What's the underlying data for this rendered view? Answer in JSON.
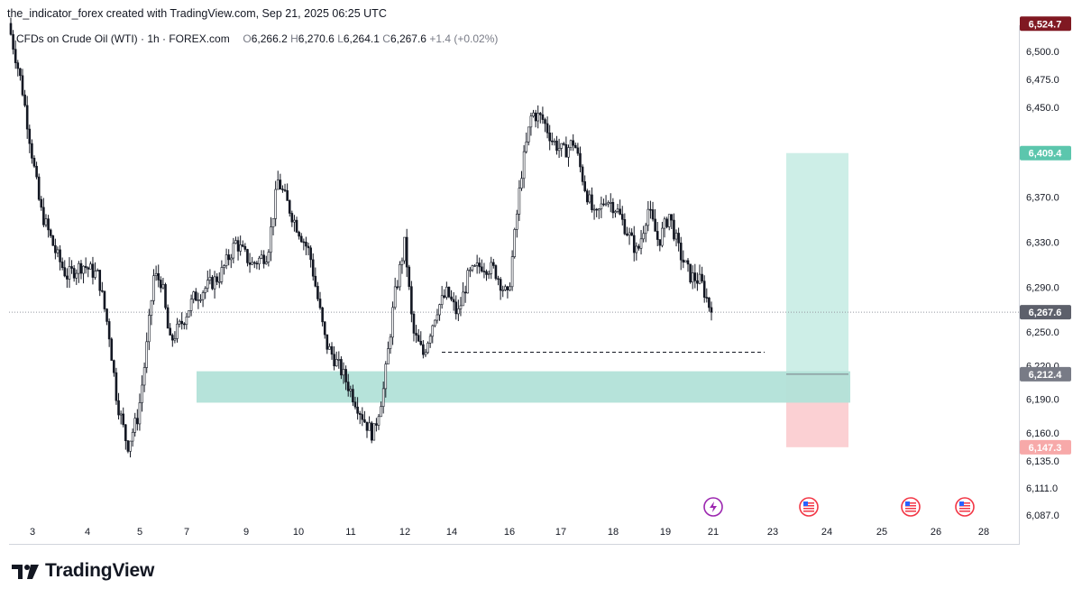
{
  "header": {
    "caption": "the_indicator_forex created with TradingView.com, Sep 21, 2025 06:25 UTC",
    "symbol": "CFDs on Crude Oil (WTI) · 1h · FOREX.com",
    "ohlc": {
      "o_label": "O",
      "o": "6,266.2",
      "h_label": "H",
      "h": "6,270.6",
      "l_label": "L",
      "l": "6,264.1",
      "c_label": "C",
      "c": "6,267.6",
      "change": "+1.4 (+0.02%)"
    }
  },
  "brand": {
    "name": "TradingView"
  },
  "colors": {
    "candle": "#131722",
    "zone": "#b2e2d8",
    "target": "#cdeee7",
    "stop": "#fbd0d3",
    "tag_high": "#801922",
    "tag_target": "#5cc6ad",
    "tag_last": "#5d606b",
    "tag_entry": "#787b86",
    "tag_stop": "#f7a9a9"
  },
  "chart_data": {
    "type": "candlestick",
    "y_axis_ticks": [
      "6,500.0",
      "6,475.0",
      "6,450.0",
      "6,370.0",
      "6,330.0",
      "6,290.0",
      "6,250.0",
      "6,220.0",
      "6,190.0",
      "6,160.0",
      "6,135.0",
      "6,111.0",
      "6,087.0"
    ],
    "x_axis_ticks": [
      "3",
      "4",
      "5",
      "7",
      "9",
      "10",
      "11",
      "12",
      "14",
      "16",
      "17",
      "18",
      "19",
      "21",
      "23",
      "24",
      "25",
      "26",
      "28"
    ],
    "price_tags": [
      {
        "label": "6,524.7",
        "kind": "high"
      },
      {
        "label": "6,409.4",
        "kind": "target"
      },
      {
        "label": "6,267.6",
        "kind": "last"
      },
      {
        "label": "6,212.4",
        "kind": "entry"
      },
      {
        "label": "6,147.3",
        "kind": "stop"
      }
    ],
    "last_price": 6267.6,
    "demand_zone": {
      "low": 6187,
      "high": 6215,
      "x_start": "7",
      "x_end": "24"
    },
    "dashed_level": {
      "price": 6232,
      "x_start": "14",
      "x_end": "23"
    },
    "long_position": {
      "entry": 6212.4,
      "target": 6409.4,
      "stop": 6147.3,
      "x_start": "23",
      "x_end": "24"
    },
    "event_icons": [
      {
        "name": "energy-event",
        "x": "21"
      },
      {
        "name": "us-flag-event",
        "x": "23-24"
      },
      {
        "name": "us-flag-event",
        "x": "25"
      },
      {
        "name": "us-flag-event",
        "x": "26"
      }
    ],
    "swing_path": [
      [
        0,
        6525
      ],
      [
        0.05,
        6470
      ],
      [
        0.12,
        6360
      ],
      [
        0.18,
        6320
      ],
      [
        0.22,
        6300
      ],
      [
        0.28,
        6310
      ],
      [
        0.34,
        6300
      ],
      [
        0.38,
        6250
      ],
      [
        0.41,
        6190
      ],
      [
        0.45,
        6148
      ],
      [
        0.49,
        6175
      ],
      [
        0.52,
        6230
      ],
      [
        0.55,
        6300
      ],
      [
        0.58,
        6295
      ],
      [
        0.61,
        6240
      ],
      [
        0.66,
        6260
      ],
      [
        0.7,
        6280
      ],
      [
        0.75,
        6290
      ],
      [
        0.8,
        6300
      ],
      [
        0.86,
        6330
      ],
      [
        0.92,
        6310
      ],
      [
        0.98,
        6320
      ],
      [
        1.02,
        6385
      ],
      [
        1.08,
        6350
      ],
      [
        1.14,
        6320
      ],
      [
        1.2,
        6240
      ],
      [
        1.26,
        6215
      ],
      [
        1.3,
        6195
      ],
      [
        1.35,
        6170
      ],
      [
        1.38,
        6158
      ],
      [
        1.42,
        6200
      ],
      [
        1.46,
        6280
      ],
      [
        1.5,
        6330
      ],
      [
        1.53,
        6250
      ],
      [
        1.57,
        6230
      ],
      [
        1.62,
        6270
      ],
      [
        1.66,
        6285
      ],
      [
        1.7,
        6265
      ],
      [
        1.74,
        6300
      ],
      [
        1.79,
        6310
      ],
      [
        1.84,
        6305
      ],
      [
        1.89,
        6280
      ],
      [
        1.94,
        6390
      ],
      [
        1.98,
        6445
      ],
      [
        2.02,
        6440
      ],
      [
        2.06,
        6420
      ],
      [
        2.1,
        6410
      ],
      [
        2.14,
        6420
      ],
      [
        2.18,
        6380
      ],
      [
        2.22,
        6350
      ],
      [
        2.26,
        6370
      ],
      [
        2.3,
        6360
      ],
      [
        2.34,
        6340
      ],
      [
        2.38,
        6320
      ],
      [
        2.42,
        6360
      ],
      [
        2.46,
        6330
      ],
      [
        2.5,
        6355
      ],
      [
        2.54,
        6320
      ],
      [
        2.58,
        6300
      ],
      [
        2.62,
        6295
      ],
      [
        2.66,
        6267.6
      ]
    ]
  }
}
